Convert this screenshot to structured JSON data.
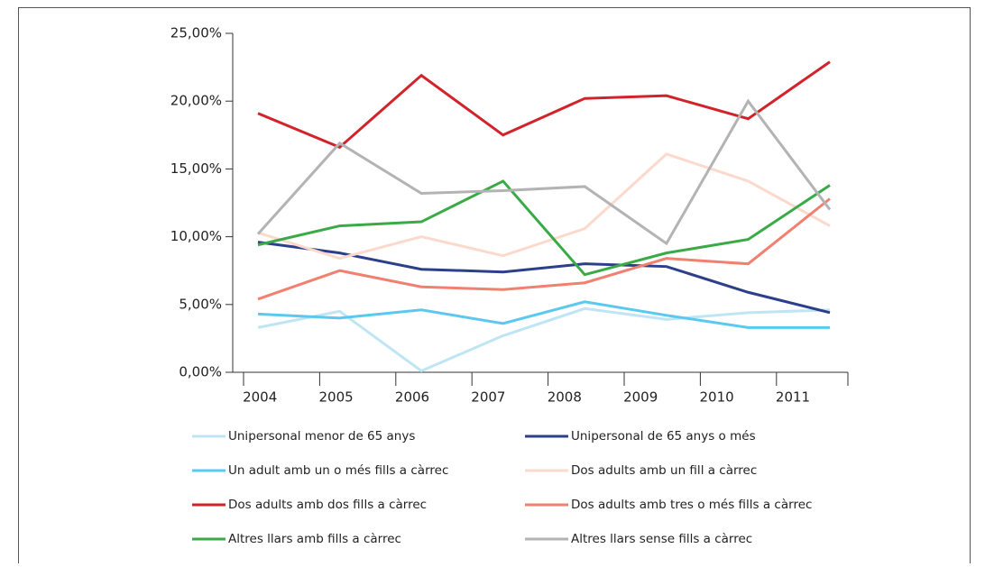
{
  "chart_data": {
    "type": "line",
    "categories": [
      "2004",
      "2005",
      "2006",
      "2007",
      "2008",
      "2009",
      "2010",
      "2011"
    ],
    "ylim": [
      0,
      25
    ],
    "yticks": [
      {
        "value": 0,
        "label": "0,00%"
      },
      {
        "value": 5,
        "label": "5,00%"
      },
      {
        "value": 10,
        "label": "10,00%"
      },
      {
        "value": 15,
        "label": "15,00%"
      },
      {
        "value": 20,
        "label": "20,00%"
      },
      {
        "value": 25,
        "label": "25,00%"
      }
    ],
    "series": [
      {
        "name": "Unipersonal menor de 65 anys",
        "color": "#bfe5f5",
        "values": [
          3.3,
          4.5,
          0.1,
          2.7,
          4.7,
          3.9,
          4.4,
          4.6
        ]
      },
      {
        "name": "Unipersonal de 65 anys o més",
        "color": "#2b3f8a",
        "values": [
          9.6,
          8.8,
          7.6,
          7.4,
          8.0,
          7.8,
          5.9,
          4.4
        ]
      },
      {
        "name": "Un adult amb un o més fills a càrrec",
        "color": "#5bc8f0",
        "values": [
          4.3,
          4.0,
          4.6,
          3.6,
          5.2,
          4.2,
          3.3,
          3.3
        ]
      },
      {
        "name": "Dos adults amb un fill a càrrec",
        "color": "#fbd9cc",
        "values": [
          10.3,
          8.4,
          10.0,
          8.6,
          10.6,
          16.1,
          14.1,
          10.8
        ]
      },
      {
        "name": "Dos adults amb dos fills a càrrec",
        "color": "#d2232a",
        "values": [
          19.1,
          16.6,
          21.9,
          17.5,
          20.2,
          20.4,
          18.7,
          22.9
        ]
      },
      {
        "name": "Dos adults amb tres o més fills a càrrec",
        "color": "#f08070",
        "values": [
          5.4,
          7.5,
          6.3,
          6.1,
          6.6,
          8.4,
          8.0,
          12.8
        ]
      },
      {
        "name": "Altres llars amb fills a càrrec",
        "color": "#3aaa47",
        "values": [
          9.4,
          10.8,
          11.1,
          14.1,
          7.2,
          8.8,
          9.8,
          13.8
        ]
      },
      {
        "name": "Altres llars sense fills a càrrec",
        "color": "#b3b3b3",
        "values": [
          10.2,
          16.9,
          13.2,
          13.4,
          13.7,
          9.5,
          20.0,
          12.0
        ]
      }
    ]
  }
}
